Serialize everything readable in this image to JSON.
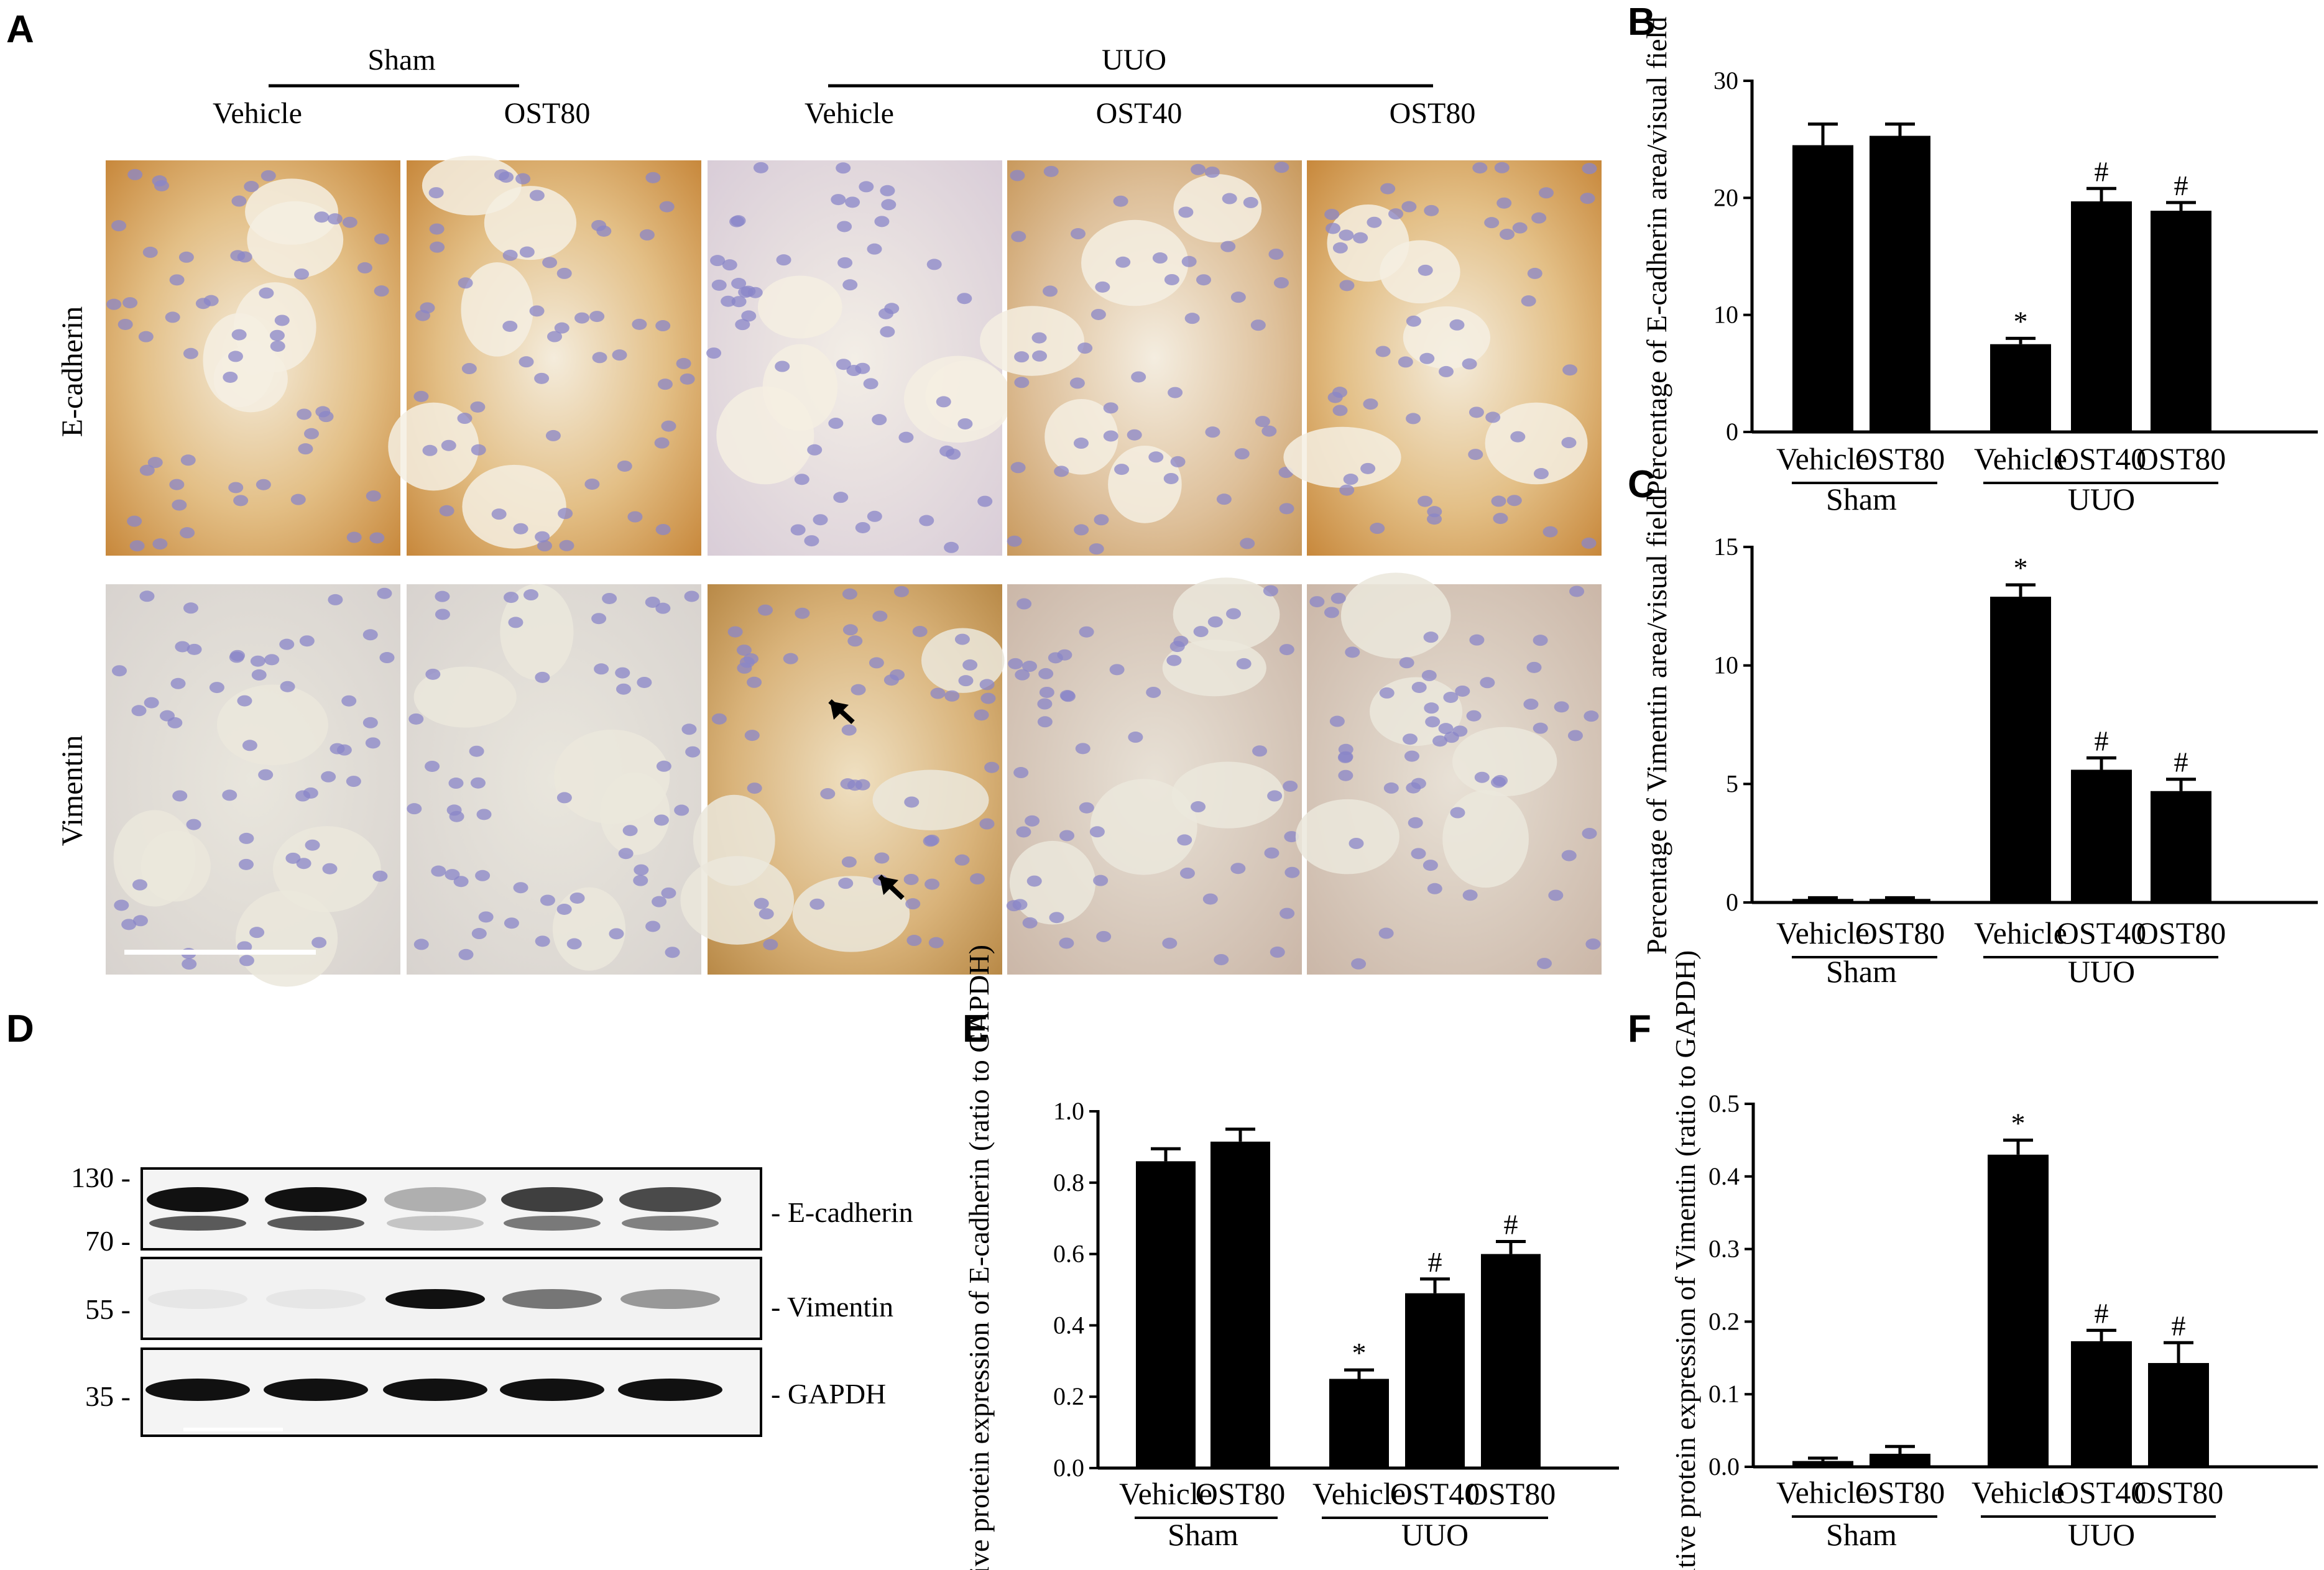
{
  "panel_letters": [
    "A",
    "B",
    "C",
    "D",
    "E",
    "F"
  ],
  "panel_a": {
    "groups": [
      "Sham",
      "UUO"
    ],
    "columns": [
      "Vehicle",
      "OST80",
      "Vehicle",
      "OST40",
      "OST80"
    ],
    "rows": [
      "E-cadherin",
      "Vimentin"
    ]
  },
  "panel_d": {
    "mw_markers": [
      "130 -",
      "70 -",
      "55 -",
      "35 -"
    ],
    "bands": [
      "- E-cadherin",
      "- Vimentin",
      "- GAPDH"
    ]
  },
  "colors": {
    "bar": "#000000",
    "ecad_stain": "#c98a3a",
    "nuclei": "#8a86c8",
    "tissue_bg": "#f2e9d8",
    "vim_bg": "#e6e2d6"
  },
  "chart_data": [
    {
      "panel": "B",
      "type": "bar",
      "ylabel": "Percentage of E-cadherin area/visual field",
      "categories": [
        "Vehicle",
        "OST80",
        "Vehicle",
        "OST40",
        "OST80"
      ],
      "group_labels": [
        "Sham",
        "UUO"
      ],
      "values": [
        24.5,
        25.3,
        7.5,
        19.7,
        18.9
      ],
      "errors": [
        1.8,
        1.0,
        0.5,
        1.1,
        0.7
      ],
      "marks": [
        "",
        "",
        "*",
        "#",
        "#"
      ],
      "ylim": [
        0,
        30
      ],
      "yticks": [
        "0",
        "10",
        "20",
        "30"
      ]
    },
    {
      "panel": "C",
      "type": "bar",
      "ylabel": "Percentage of Vimentin area/visual field",
      "categories": [
        "Vehicle",
        "OST80",
        "Vehicle",
        "OST40",
        "OST80"
      ],
      "group_labels": [
        "Sham",
        "UUO"
      ],
      "values": [
        0.15,
        0.15,
        12.9,
        5.6,
        4.7
      ],
      "errors": [
        0.05,
        0.05,
        0.5,
        0.5,
        0.5
      ],
      "marks": [
        "",
        "",
        "*",
        "#",
        "#"
      ],
      "ylim": [
        0,
        15
      ],
      "yticks": [
        "0",
        "5",
        "10",
        "15"
      ]
    },
    {
      "panel": "E",
      "type": "bar",
      "ylabel": "Relative protein expression of E-cadherin (ratio to GAPDH)",
      "categories": [
        "Vehicle",
        "OST80",
        "Vehicle",
        "OST40",
        "OST80"
      ],
      "group_labels": [
        "Sham",
        "UUO"
      ],
      "values": [
        0.86,
        0.915,
        0.25,
        0.49,
        0.6
      ],
      "errors": [
        0.035,
        0.035,
        0.025,
        0.04,
        0.035
      ],
      "marks": [
        "",
        "",
        "*",
        "#",
        "#"
      ],
      "ylim": [
        0,
        1.0
      ],
      "yticks": [
        "0.0",
        "0.2",
        "0.4",
        "0.6",
        "0.8",
        "1.0"
      ]
    },
    {
      "panel": "F",
      "type": "bar",
      "ylabel": "Relative protein expression of Vimentin (ratio to GAPDH)",
      "categories": [
        "Vehicle",
        "OST80",
        "Vehicle",
        "OST40",
        "OST80"
      ],
      "group_labels": [
        "Sham",
        "UUO"
      ],
      "values": [
        0.008,
        0.018,
        0.43,
        0.173,
        0.143
      ],
      "errors": [
        0.004,
        0.01,
        0.02,
        0.015,
        0.028
      ],
      "marks": [
        "",
        "",
        "*",
        "#",
        "#"
      ],
      "ylim": [
        0,
        0.5
      ],
      "yticks": [
        "0.0",
        "0.1",
        "0.2",
        "0.3",
        "0.4",
        "0.5"
      ]
    }
  ]
}
